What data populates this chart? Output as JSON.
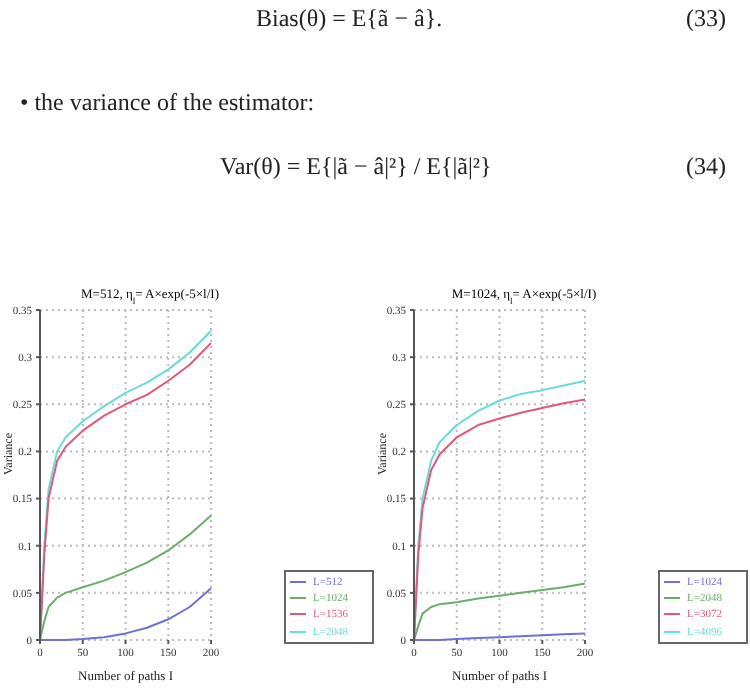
{
  "chart_data": [
    {
      "type": "line",
      "title": "M=512, η$_{l}$= A×exp(-5×l/I)",
      "xlabel": "Number of paths I",
      "ylabel": "Variance",
      "annotations": [
        "Bias(θ) = E{ã − â}.",
        "(33)",
        "• the variance of the estimator:",
        "Var(θ) = E{|ã − â|²} / E{|ã|²}",
        "(34)"
      ],
      "x": [
        0,
        5,
        10,
        20,
        30,
        50,
        75,
        100,
        125,
        150,
        175,
        200
      ],
      "xlim": [
        0,
        200
      ],
      "xticks": [
        0,
        50,
        100,
        150,
        200
      ],
      "ylim": [
        0,
        0.35
      ],
      "yticks": [
        0,
        0.05,
        0.1,
        0.15,
        0.2,
        0.25,
        0.3,
        0.35
      ],
      "grid": true,
      "legend": "bottom right",
      "marker": "none",
      "series": [
        {
          "name": "L=512",
          "color": "#6f6fd8",
          "values": [
            0,
            0,
            0,
            0,
            0,
            0.001,
            0.003,
            0.007,
            0.013,
            0.022,
            0.035,
            0.055
          ]
        },
        {
          "name": "L=1024",
          "color": "#6aae6a",
          "values": [
            0,
            0.02,
            0.035,
            0.045,
            0.05,
            0.056,
            0.063,
            0.072,
            0.082,
            0.095,
            0.112,
            0.132
          ]
        },
        {
          "name": "L=1536",
          "color": "#dd5a7a",
          "values": [
            0,
            0.09,
            0.15,
            0.19,
            0.205,
            0.222,
            0.238,
            0.25,
            0.26,
            0.275,
            0.292,
            0.315
          ]
        },
        {
          "name": "L=2048",
          "color": "#6adcd8",
          "values": [
            0,
            0.1,
            0.16,
            0.2,
            0.215,
            0.232,
            0.248,
            0.262,
            0.273,
            0.287,
            0.305,
            0.328
          ]
        }
      ]
    },
    {
      "type": "line",
      "title": "M=1024, η$_{l}$= A×exp(-5×l/I)",
      "xlabel": "Number of paths I",
      "ylabel": "Variance",
      "x": [
        0,
        5,
        10,
        20,
        30,
        50,
        75,
        100,
        125,
        150,
        175,
        200
      ],
      "xlim": [
        0,
        200
      ],
      "xticks": [
        0,
        50,
        100,
        150,
        200
      ],
      "ylim": [
        0,
        0.35
      ],
      "yticks": [
        0,
        0.05,
        0.1,
        0.15,
        0.2,
        0.25,
        0.3,
        0.35
      ],
      "grid": true,
      "legend": "bottom right",
      "marker": "none",
      "series": [
        {
          "name": "L=1024",
          "color": "#6f6fd8",
          "values": [
            0,
            0,
            0,
            0,
            0,
            0.001,
            0.002,
            0.003,
            0.004,
            0.005,
            0.006,
            0.007
          ]
        },
        {
          "name": "L=2048",
          "color": "#6aae6a",
          "values": [
            0,
            0.015,
            0.028,
            0.035,
            0.038,
            0.04,
            0.044,
            0.047,
            0.05,
            0.053,
            0.056,
            0.06
          ]
        },
        {
          "name": "L=3072",
          "color": "#dd5a7a",
          "values": [
            0,
            0.09,
            0.14,
            0.18,
            0.197,
            0.215,
            0.228,
            0.235,
            0.241,
            0.246,
            0.251,
            0.255
          ]
        },
        {
          "name": "L=4096",
          "color": "#6adcd8",
          "values": [
            0,
            0.1,
            0.15,
            0.19,
            0.21,
            0.228,
            0.243,
            0.254,
            0.261,
            0.265,
            0.27,
            0.275
          ]
        }
      ]
    }
  ]
}
